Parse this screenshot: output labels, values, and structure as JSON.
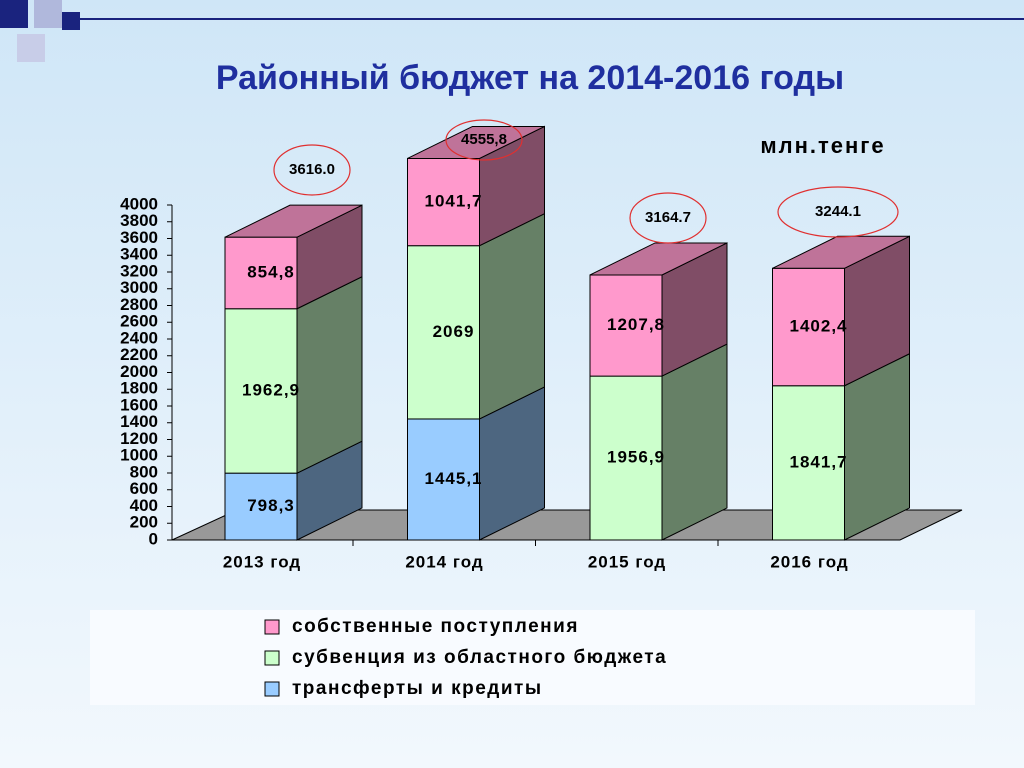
{
  "chart_data": {
    "type": "bar3d_stacked",
    "title": "Районный бюджет на 2014-2016 годы",
    "unit_label": "млн.тенге",
    "categories": [
      "2013 год",
      "2014 год",
      "2015 год",
      "2016 год"
    ],
    "series": [
      {
        "name": "собственные поступления",
        "color": "#ff99cc",
        "values": [
          854.8,
          1041.7,
          1207.8,
          1402.4
        ],
        "value_labels": [
          "854,8",
          "1041,7",
          "1207,8",
          "1402,4"
        ]
      },
      {
        "name": "субвенция из областного бюджета",
        "color": "#ccffcc",
        "values": [
          1962.9,
          2069,
          1956.9,
          1841.7
        ],
        "value_labels": [
          "1962,9",
          "2069",
          "1956,9",
          "1841,7"
        ]
      },
      {
        "name": "трансферты и кредиты",
        "color": "#99ccff",
        "values": [
          798.3,
          1445.1,
          null,
          null
        ],
        "value_labels": [
          "798,3",
          "1445,1",
          null,
          null
        ]
      }
    ],
    "totals": {
      "values": [
        3616.0,
        4555.8,
        3164.7,
        3244.1
      ],
      "value_labels": [
        "3616.0",
        "4555,8",
        "3164.7",
        "3244.1"
      ]
    },
    "ylim": [
      0,
      4000
    ],
    "yticks": [
      0,
      200,
      400,
      600,
      800,
      1000,
      1200,
      1400,
      1600,
      1800,
      2000,
      2200,
      2400,
      2600,
      2800,
      3000,
      3200,
      3400,
      3600,
      3800,
      4000
    ],
    "legend": "bottom"
  }
}
